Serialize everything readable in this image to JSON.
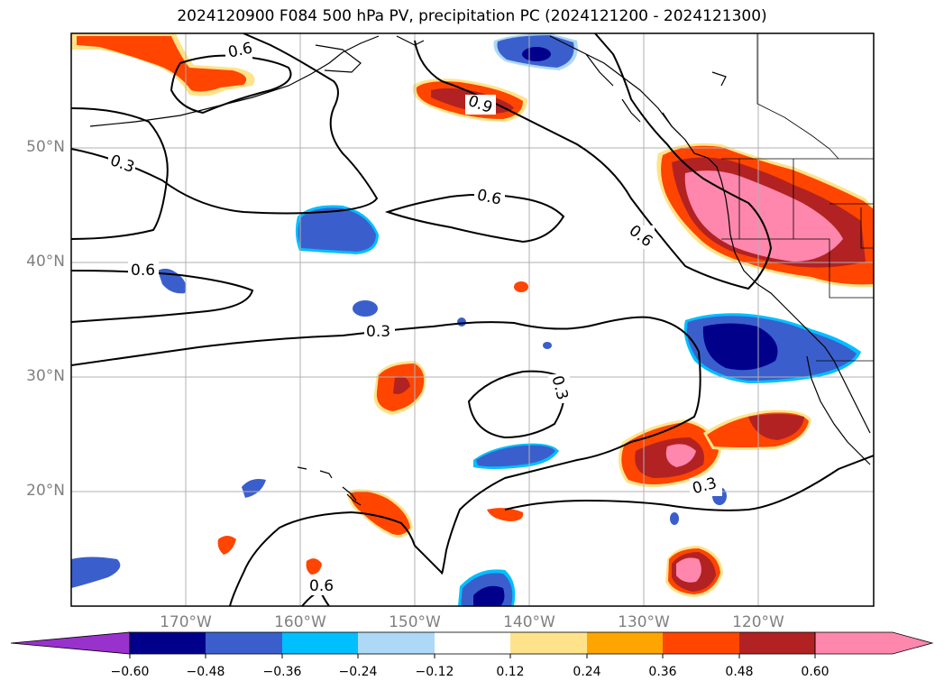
{
  "title": "2024120900 F084 500 hPa PV, precipitation PC (2024121200 - 2024121300)",
  "map": {
    "lat_labels": [
      "50°N",
      "40°N",
      "30°N",
      "20°N"
    ],
    "lon_labels": [
      "170°W",
      "160°W",
      "150°W",
      "140°W",
      "130°W",
      "120°W"
    ],
    "extent": {
      "lon_min": -180,
      "lon_max": -110,
      "lat_min": 10,
      "lat_max": 60
    },
    "gridlines": true,
    "contour_labels": [
      "0.6",
      "0.3",
      "0.6",
      "0.9",
      "0.6",
      "0.6",
      "0.3",
      "0.3",
      "0.3",
      "0.6"
    ]
  },
  "colorbar": {
    "ticks": [
      "−0.60",
      "−0.48",
      "−0.36",
      "−0.24",
      "−0.12",
      "0.12",
      "0.24",
      "0.36",
      "0.48",
      "0.60"
    ],
    "colors": [
      "#9932cc",
      "#00008b",
      "#3a5fcd",
      "#00bfff",
      "#add8f6",
      "#ffffff",
      "#ffe38a",
      "#ffa500",
      "#ff4500",
      "#b22222",
      "#ff87ae"
    ]
  },
  "colors": {
    "pv_contour": "#000000",
    "coast": "#000000",
    "grid": "#b0b0b0",
    "label_gray": "#808080"
  }
}
